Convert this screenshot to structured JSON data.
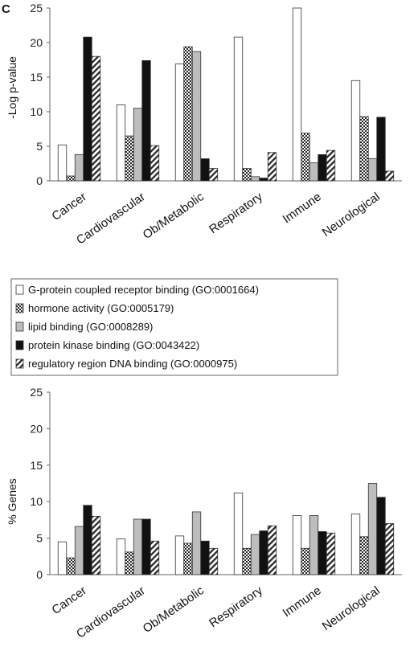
{
  "panel_label": "C",
  "colors": {
    "gpcr": "#ffffff",
    "hormone": "checker",
    "lipid": "#bdbdbd",
    "kinase": "#111111",
    "dna": "diagonal-stripes",
    "stroke": "#333333"
  },
  "legend": [
    "G-protein coupled receptor binding (GO:0001664)",
    "hormone activity (GO:0005179)",
    "lipid binding (GO:0008289)",
    "protein kinase binding (GO:0043422)",
    "regulatory region DNA binding (GO:0000975)"
  ],
  "chart_data": [
    {
      "type": "bar",
      "title": "",
      "xlabel": "",
      "ylabel": "-Log p-value",
      "ylim": [
        0,
        25
      ],
      "yticks": [
        0,
        5,
        10,
        15,
        20,
        25
      ],
      "grid": false,
      "legend_position": "below",
      "categories": [
        "Cancer",
        "Cardiovascular",
        "Ob/Metabolic",
        "Respiratory",
        "Immune",
        "Neurological"
      ],
      "series": [
        {
          "name": "G-protein coupled receptor binding (GO:0001664)",
          "values": [
            5.2,
            11.0,
            16.9,
            20.8,
            25.0,
            14.5
          ]
        },
        {
          "name": "hormone activity (GO:0005179)",
          "values": [
            0.7,
            6.5,
            19.4,
            1.8,
            6.9,
            9.3
          ]
        },
        {
          "name": "lipid binding (GO:0008289)",
          "values": [
            3.8,
            10.5,
            18.7,
            0.6,
            2.6,
            3.2
          ]
        },
        {
          "name": "protein kinase binding (GO:0043422)",
          "values": [
            20.8,
            17.4,
            3.2,
            0.4,
            3.8,
            9.2
          ]
        },
        {
          "name": "regulatory region DNA binding (GO:0000975)",
          "values": [
            18.0,
            5.1,
            1.8,
            4.1,
            4.4,
            1.4
          ]
        }
      ]
    },
    {
      "type": "bar",
      "title": "",
      "xlabel": "",
      "ylabel": "% Genes",
      "ylim": [
        0,
        25
      ],
      "yticks": [
        0,
        5,
        10,
        15,
        20,
        25
      ],
      "grid": false,
      "categories": [
        "Cancer",
        "Cardiovascular",
        "Ob/Metabolic",
        "Respiratory",
        "Immune",
        "Neurological"
      ],
      "series": [
        {
          "name": "G-protein coupled receptor binding (GO:0001664)",
          "values": [
            4.5,
            4.9,
            5.3,
            11.2,
            8.1,
            8.3
          ]
        },
        {
          "name": "hormone activity (GO:0005179)",
          "values": [
            2.3,
            3.1,
            4.3,
            3.6,
            3.6,
            5.2
          ]
        },
        {
          "name": "lipid binding (GO:0008289)",
          "values": [
            6.6,
            7.6,
            8.6,
            5.5,
            8.1,
            12.5
          ]
        },
        {
          "name": "protein kinase binding (GO:0043422)",
          "values": [
            9.5,
            7.6,
            4.6,
            6.0,
            5.9,
            10.6
          ]
        },
        {
          "name": "regulatory region DNA binding (GO:0000975)",
          "values": [
            8.0,
            4.6,
            3.6,
            6.7,
            5.7,
            7.0
          ]
        }
      ]
    }
  ]
}
